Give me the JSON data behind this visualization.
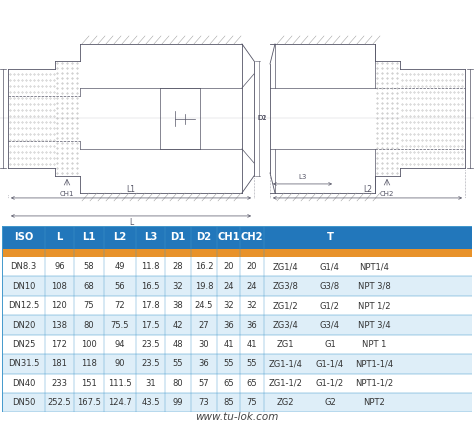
{
  "website": "www.tu-lok.com",
  "rows": [
    [
      "DN8.3",
      "96",
      "58",
      "49",
      "11.8",
      "28",
      "16.2",
      "20",
      "20",
      "ZG1/4",
      "G1/4",
      "NPT1/4"
    ],
    [
      "DN10",
      "108",
      "68",
      "56",
      "16.5",
      "32",
      "19.8",
      "24",
      "24",
      "ZG3/8",
      "G3/8",
      "NPT 3/8"
    ],
    [
      "DN12.5",
      "120",
      "75",
      "72",
      "17.8",
      "38",
      "24.5",
      "32",
      "32",
      "ZG1/2",
      "G1/2",
      "NPT 1/2"
    ],
    [
      "DN20",
      "138",
      "80",
      "75.5",
      "17.5",
      "42",
      "27",
      "36",
      "36",
      "ZG3/4",
      "G3/4",
      "NPT 3/4"
    ],
    [
      "DN25",
      "172",
      "100",
      "94",
      "23.5",
      "48",
      "30",
      "41",
      "41",
      "ZG1",
      "G1",
      "NPT 1"
    ],
    [
      "DN31.5",
      "181",
      "118",
      "90",
      "23.5",
      "55",
      "36",
      "55",
      "55",
      "ZG1-1/4",
      "G1-1/4",
      "NPT1-1/4"
    ],
    [
      "DN40",
      "233",
      "151",
      "111.5",
      "31",
      "80",
      "57",
      "65",
      "65",
      "ZG1-1/2",
      "G1-1/2",
      "NPT1-1/2"
    ],
    [
      "DN50",
      "252.5",
      "167.5",
      "124.7",
      "43.5",
      "99",
      "73",
      "85",
      "75",
      "ZG2",
      "G2",
      "NPT2"
    ]
  ],
  "header_bg": "#2277bb",
  "header_text_color": "#ffffff",
  "orange_row_bg": "#e8922a",
  "alt_row_bg": "#ffffff",
  "alt_row_bg2": "#deeef8",
  "row_text_color": "#333333",
  "border_color": "#4499cc",
  "table_bg": "#ffffff",
  "fig_bg": "#ffffff",
  "diagram_bg": "#ffffff",
  "line_color": "#555566",
  "hatch_color": "#aaaaaa"
}
